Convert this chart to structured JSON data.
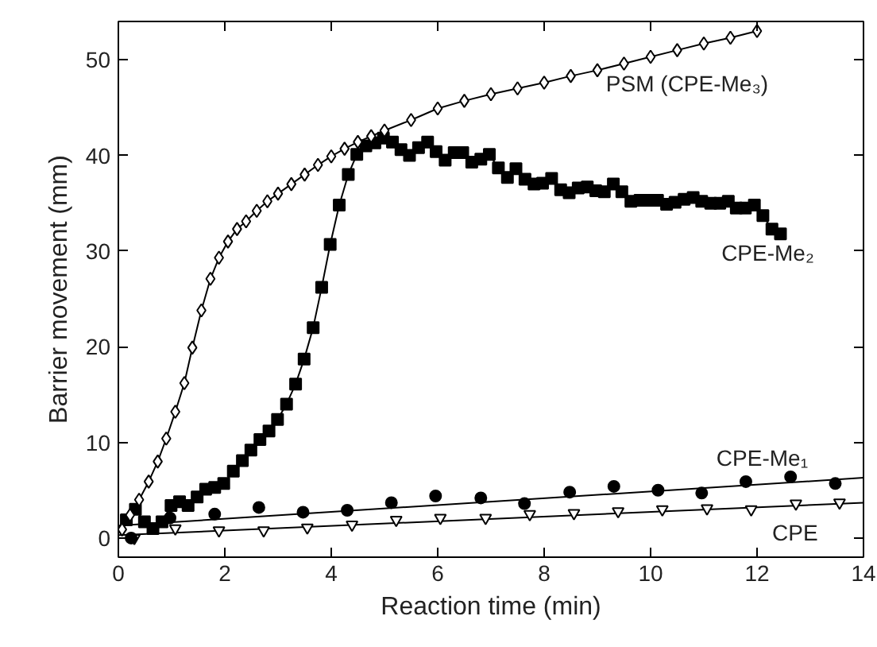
{
  "chart_data": {
    "type": "line",
    "xlabel": "Reaction time (min)",
    "ylabel": "Barrier movement (mm)",
    "xlim": [
      0,
      14
    ],
    "ylim": [
      -2,
      54
    ],
    "xticks": [
      0,
      2,
      4,
      6,
      8,
      10,
      12,
      14
    ],
    "yticks": [
      0,
      10,
      20,
      30,
      40,
      50
    ],
    "grid": false,
    "legend": "right",
    "series": [
      {
        "name": "PSM (CPE-Me₃)",
        "color": "#000000",
        "marker": "diamond",
        "x": [
          0.07,
          0.22,
          0.39,
          0.57,
          0.74,
          0.9,
          1.07,
          1.24,
          1.39,
          1.56,
          1.73,
          1.89,
          2.06,
          2.23,
          2.4,
          2.6,
          2.8,
          3.0,
          3.25,
          3.5,
          3.75,
          4.0,
          4.25,
          4.5,
          4.75,
          5.0,
          5.5,
          6.0,
          6.5,
          7.0,
          7.5,
          8.0,
          8.5,
          9.0,
          9.5,
          10.0,
          10.5,
          11.0,
          11.5,
          12.0
        ],
        "values": [
          0.9,
          2.4,
          4.0,
          5.9,
          8.0,
          10.4,
          13.2,
          16.2,
          19.9,
          23.8,
          27.1,
          29.3,
          31.0,
          32.3,
          33.1,
          34.2,
          35.2,
          36.0,
          37.0,
          38.0,
          39.0,
          39.9,
          40.7,
          41.4,
          42.0,
          42.6,
          43.7,
          44.9,
          45.7,
          46.4,
          47.0,
          47.6,
          48.3,
          48.9,
          49.6,
          50.3,
          51.0,
          51.7,
          52.3,
          53.0
        ]
      },
      {
        "name": "CPE-Me₂",
        "color": "#000000",
        "marker": "square",
        "x": [
          0.15,
          0.32,
          0.49,
          0.65,
          0.82,
          0.99,
          1.15,
          1.31,
          1.48,
          1.64,
          1.81,
          1.98,
          2.16,
          2.33,
          2.49,
          2.66,
          2.83,
          2.99,
          3.16,
          3.33,
          3.49,
          3.66,
          3.82,
          3.98,
          4.15,
          4.32,
          4.48,
          4.65,
          4.82,
          4.98,
          5.15,
          5.31,
          5.47,
          5.64,
          5.81,
          5.97,
          6.14,
          6.31,
          6.47,
          6.64,
          6.81,
          6.97,
          7.14,
          7.31,
          7.47,
          7.64,
          7.81,
          7.97,
          8.14,
          8.31,
          8.47,
          8.64,
          8.81,
          8.97,
          9.13,
          9.3,
          9.46,
          9.63,
          9.8,
          9.96,
          10.13,
          10.3,
          10.46,
          10.63,
          10.8,
          10.96,
          11.13,
          11.3,
          11.46,
          11.61,
          11.78,
          11.95,
          12.11,
          12.28,
          12.44
        ],
        "values": [
          1.9,
          3.0,
          1.7,
          1.0,
          1.7,
          3.4,
          3.8,
          3.4,
          4.3,
          5.1,
          5.3,
          5.7,
          7.0,
          8.1,
          9.2,
          10.3,
          11.2,
          12.4,
          14.0,
          16.1,
          18.7,
          22.0,
          26.2,
          30.7,
          34.8,
          38.0,
          40.1,
          41.0,
          41.3,
          41.8,
          41.4,
          40.6,
          40.0,
          40.8,
          41.4,
          40.4,
          39.5,
          40.3,
          40.3,
          39.3,
          39.6,
          40.1,
          38.7,
          37.7,
          38.6,
          37.5,
          37.0,
          37.1,
          37.6,
          36.4,
          36.1,
          36.6,
          36.7,
          36.3,
          36.2,
          37.0,
          36.2,
          35.2,
          35.3,
          35.3,
          35.3,
          34.9,
          35.1,
          35.4,
          35.6,
          35.2,
          35.0,
          35.0,
          35.2,
          34.5,
          34.5,
          34.8,
          33.7,
          32.3,
          31.8
        ]
      },
      {
        "type": "scatter",
        "name": "CPE-Me₁",
        "color": "#000000",
        "marker": "circle",
        "x": [
          0.24,
          0.97,
          1.81,
          2.64,
          3.47,
          4.3,
          5.13,
          5.96,
          6.81,
          7.63,
          8.48,
          9.31,
          10.14,
          10.96,
          11.79,
          12.63,
          13.47
        ],
        "values": [
          0.0,
          2.1,
          2.5,
          3.2,
          2.7,
          2.9,
          3.7,
          4.4,
          4.2,
          3.6,
          4.8,
          5.4,
          5.0,
          4.7,
          5.9,
          6.4,
          5.7
        ]
      },
      {
        "color": "#000000",
        "marker": "none",
        "x": [
          0,
          14
        ],
        "values": [
          1.3,
          6.3
        ]
      },
      {
        "type": "scatter",
        "name": "CPE",
        "color": "#000000",
        "marker": "triangle",
        "x": [
          0.3,
          1.07,
          1.89,
          2.73,
          3.55,
          4.39,
          5.22,
          6.05,
          6.9,
          7.73,
          8.56,
          9.39,
          10.22,
          11.06,
          11.89,
          12.73,
          13.55
        ],
        "values": [
          0.0,
          1.0,
          0.8,
          0.8,
          1.1,
          1.4,
          1.9,
          2.1,
          2.1,
          2.5,
          2.6,
          2.8,
          3.0,
          3.1,
          3.0,
          3.6,
          3.7
        ]
      },
      {
        "color": "#000000",
        "marker": "none",
        "x": [
          0,
          14
        ],
        "values": [
          0.3,
          3.7
        ]
      }
    ]
  }
}
